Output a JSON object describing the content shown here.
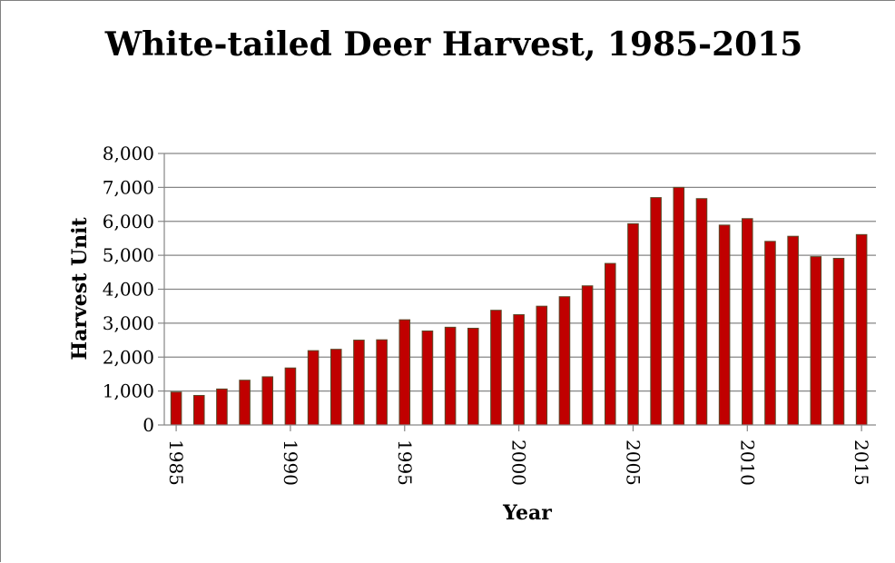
{
  "chart_data": {
    "type": "bar",
    "title": "White-tailed Deer Harvest, 1985-2015",
    "xlabel": "Year",
    "ylabel": "Harvest Unit",
    "ylim": [
      0,
      8000
    ],
    "yticks": [
      "0",
      "1,000",
      "2,000",
      "3,000",
      "4,000",
      "5,000",
      "6,000",
      "7,000",
      "8,000"
    ],
    "xticks": [
      "1985",
      "1990",
      "1995",
      "2000",
      "2005",
      "2010",
      "2015"
    ],
    "categories": [
      "1985",
      "1986",
      "1987",
      "1988",
      "1989",
      "1990",
      "1991",
      "1992",
      "1993",
      "1994",
      "1995",
      "1996",
      "1997",
      "1998",
      "1999",
      "2000",
      "2001",
      "2002",
      "2003",
      "2004",
      "2005",
      "2006",
      "2007",
      "2008",
      "2009",
      "2010",
      "2011",
      "2012",
      "2013",
      "2014",
      "2015"
    ],
    "values": [
      970,
      870,
      1060,
      1320,
      1420,
      1680,
      2190,
      2230,
      2500,
      2510,
      3100,
      2770,
      2880,
      2850,
      3380,
      3250,
      3500,
      3780,
      4100,
      4760,
      5930,
      6700,
      7000,
      6670,
      5890,
      6080,
      5410,
      5560,
      4960,
      4910,
      5610
    ],
    "bar_color": "#C00000",
    "bar_edge_color": "#5A4A2A",
    "grid": true,
    "legend": "none"
  }
}
